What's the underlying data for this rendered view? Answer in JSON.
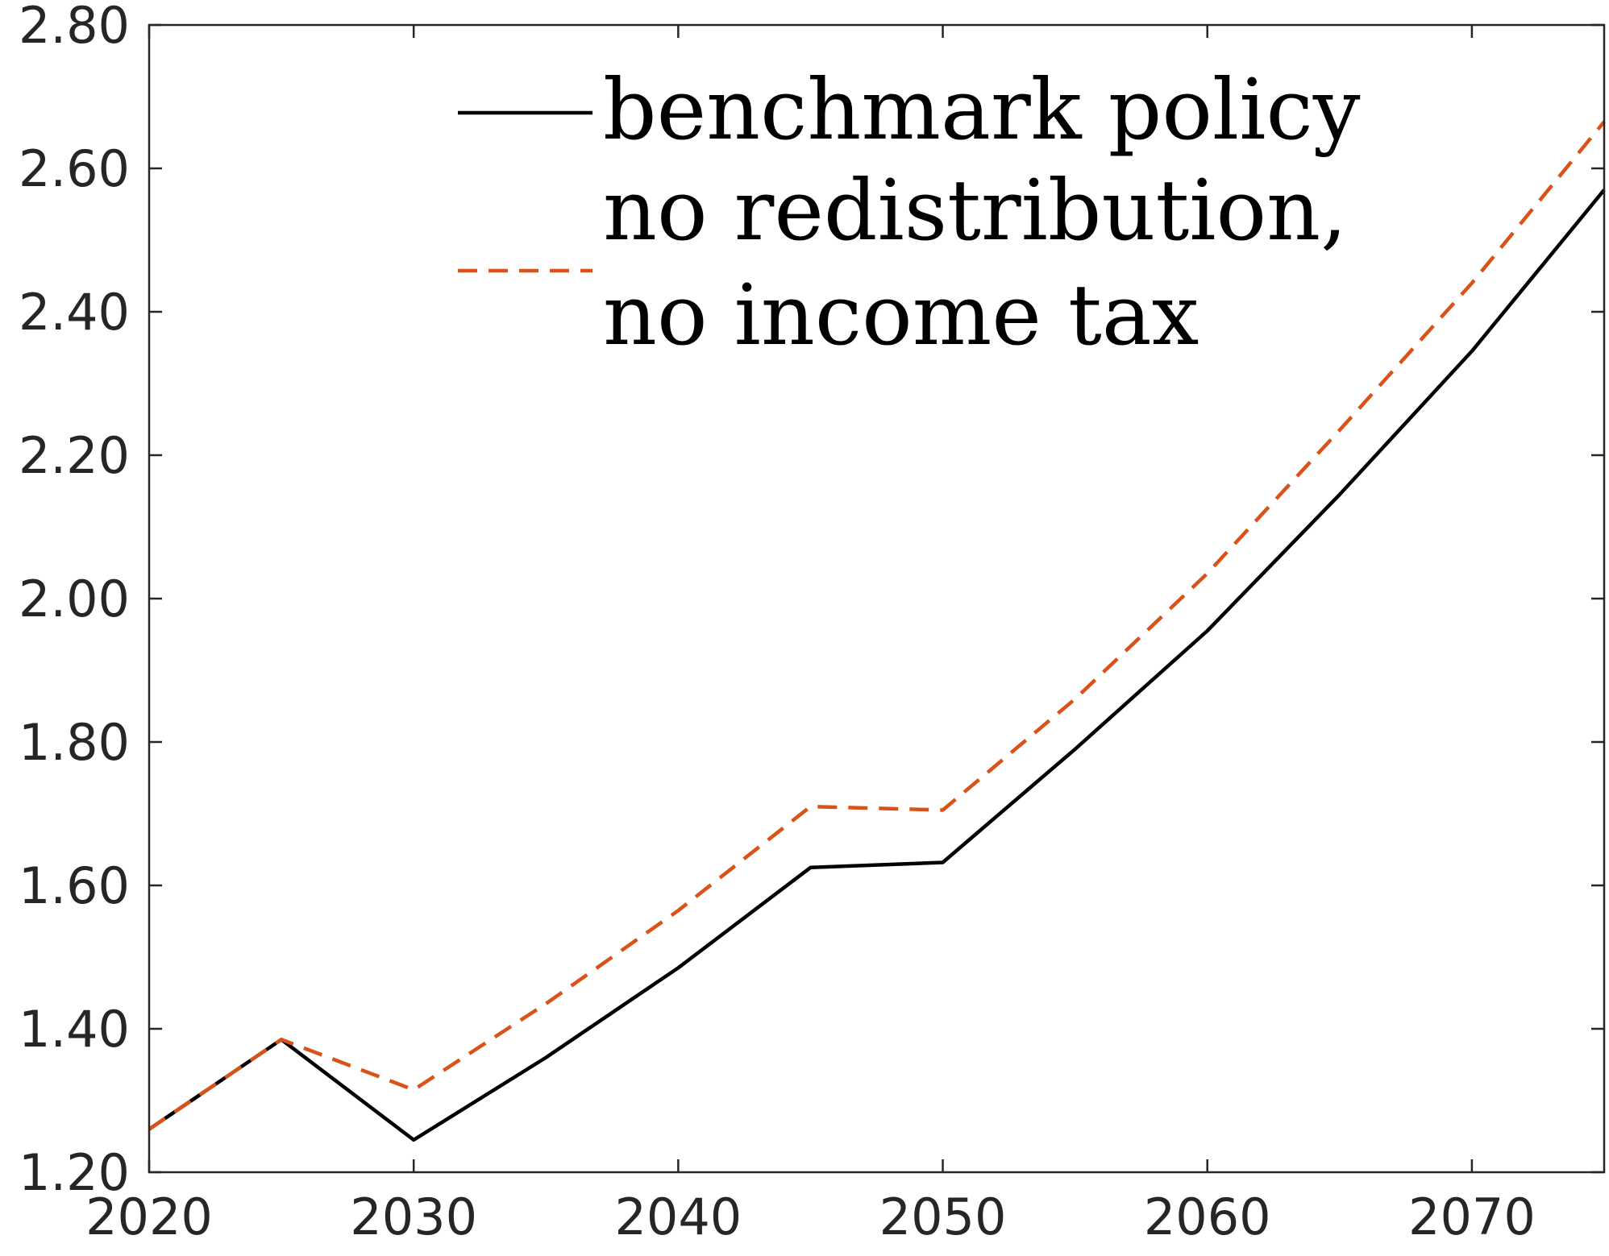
{
  "chart_data": {
    "type": "line",
    "title": "",
    "xlabel": "",
    "ylabel": "",
    "xlim": [
      2020,
      2075
    ],
    "ylim": [
      1.2,
      2.8
    ],
    "x_ticks": [
      2020,
      2030,
      2040,
      2050,
      2060,
      2070
    ],
    "x_tick_labels": [
      "2020",
      "2030",
      "2040",
      "2050",
      "2060",
      "2070"
    ],
    "y_ticks": [
      1.2,
      1.4,
      1.6,
      1.8,
      2.0,
      2.2,
      2.4,
      2.6,
      2.8
    ],
    "y_tick_labels": [
      "1.20",
      "1.40",
      "1.60",
      "1.80",
      "2.00",
      "2.20",
      "2.40",
      "2.60",
      "2.80"
    ],
    "grid": false,
    "legend_position": "top-center",
    "x": [
      2020,
      2025,
      2030,
      2035,
      2040,
      2045,
      2050,
      2055,
      2060,
      2065,
      2070,
      2075
    ],
    "series": [
      {
        "name": "benchmark policy",
        "legend_lines": [
          "benchmark policy"
        ],
        "values": [
          1.26,
          1.385,
          1.245,
          1.36,
          1.485,
          1.625,
          1.632,
          1.79,
          1.955,
          2.145,
          2.345,
          2.57
        ],
        "color": "#000000",
        "dash": "solid"
      },
      {
        "name": "no redistribution, no income tax",
        "legend_lines": [
          "no redistribution,",
          "no income tax"
        ],
        "values": [
          1.26,
          1.385,
          1.315,
          1.435,
          1.565,
          1.71,
          1.705,
          1.86,
          2.035,
          2.235,
          2.44,
          2.665
        ],
        "color": "#D95319",
        "dash": "dashed"
      }
    ]
  }
}
